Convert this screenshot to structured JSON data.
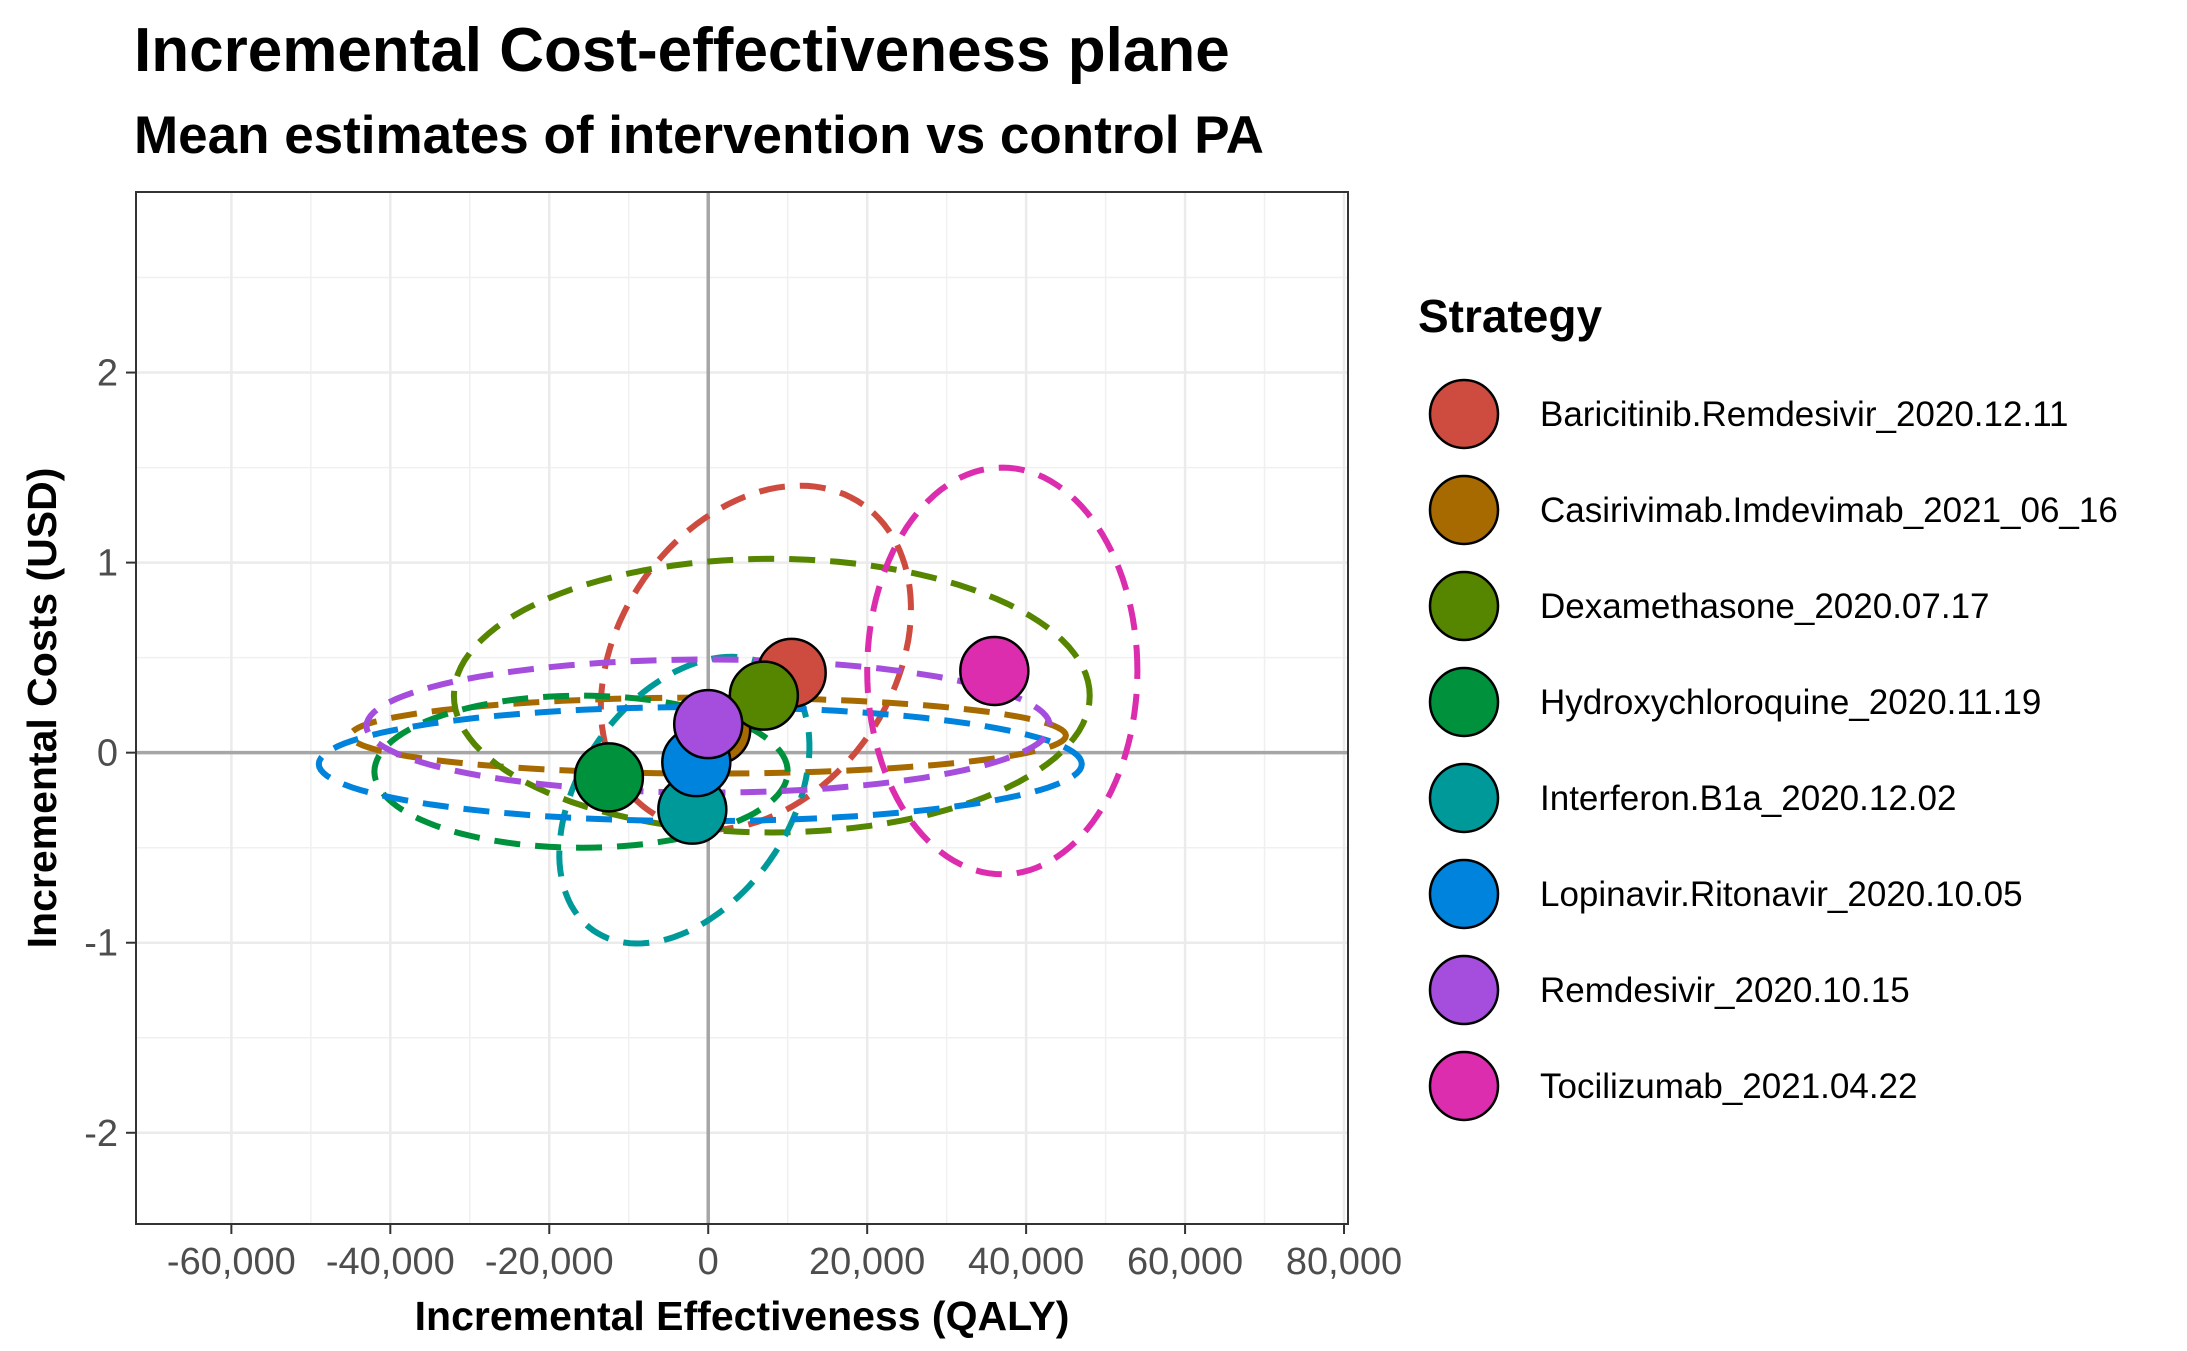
{
  "chart_data": {
    "type": "scatter",
    "title": "Incremental Cost-effectiveness plane",
    "subtitle": "Mean estimates of intervention vs control PA",
    "xlabel": "Incremental Effectiveness (QALY)",
    "ylabel": "Incremental Costs (USD)",
    "xlim": [
      -72000,
      80500
    ],
    "ylim": [
      -2.48,
      2.95
    ],
    "x_ticks": [
      -60000,
      -40000,
      -20000,
      0,
      20000,
      40000,
      60000,
      80000
    ],
    "x_tick_labels": [
      "-60,000",
      "-40,000",
      "-20,000",
      "0",
      "20,000",
      "40,000",
      "60,000",
      "80,000"
    ],
    "y_ticks": [
      -2,
      -1,
      0,
      1,
      2
    ],
    "y_tick_labels": [
      "-2",
      "-1",
      "0",
      "1",
      "2"
    ],
    "grid": true,
    "legend": {
      "title": "Strategy",
      "position": "right"
    },
    "series": [
      {
        "name": "Baricitinib.Remdesivir_2020.12.11",
        "color": "#CD4C3F",
        "x": 10500,
        "y": 0.42,
        "ellipse": {
          "cx": 6000,
          "cy": 0.5,
          "rx": 23500,
          "ry": 0.72,
          "angle_deg": 55
        }
      },
      {
        "name": "Casirivimab.Imdevimab_2021_06_16",
        "color": "#A66A00",
        "x": 1000,
        "y": 0.12,
        "ellipse": {
          "cx": 0,
          "cy": 0.09,
          "rx": 45000,
          "ry": 0.2,
          "angle_deg": 0
        }
      },
      {
        "name": "Dexamethasone_2020.07.17",
        "color": "#568500",
        "x": 7000,
        "y": 0.3,
        "ellipse": {
          "cx": 8000,
          "cy": 0.3,
          "rx": 40000,
          "ry": 0.72,
          "angle_deg": 0
        }
      },
      {
        "name": "Hydroxychloroquine_2020.11.19",
        "color": "#00913D",
        "x": -12500,
        "y": -0.13,
        "ellipse": {
          "cx": -16000,
          "cy": -0.1,
          "rx": 26000,
          "ry": 0.4,
          "angle_deg": 0
        }
      },
      {
        "name": "Interferon.B1a_2020.12.02",
        "color": "#00999A",
        "x": -2000,
        "y": -0.3,
        "ellipse": {
          "cx": -3000,
          "cy": -0.25,
          "rx": 20000,
          "ry": 0.55,
          "angle_deg": 55
        }
      },
      {
        "name": "Lopinavir.Ritonavir_2020.10.05",
        "color": "#0083DC",
        "x": -1500,
        "y": -0.05,
        "ellipse": {
          "cx": -1000,
          "cy": -0.06,
          "rx": 48000,
          "ry": 0.3,
          "angle_deg": 0
        }
      },
      {
        "name": "Remdesivir_2020.10.15",
        "color": "#A54EDE",
        "x": 0,
        "y": 0.15,
        "ellipse": {
          "cx": 0,
          "cy": 0.14,
          "rx": 43000,
          "ry": 0.35,
          "angle_deg": 0
        }
      },
      {
        "name": "Tocilizumab_2021.04.22",
        "color": "#DB2DAD",
        "x": 36000,
        "y": 0.43,
        "ellipse": {
          "cx": 37000,
          "cy": 0.43,
          "rx": 17000,
          "ry": 1.07,
          "angle_deg": 0
        }
      }
    ]
  }
}
